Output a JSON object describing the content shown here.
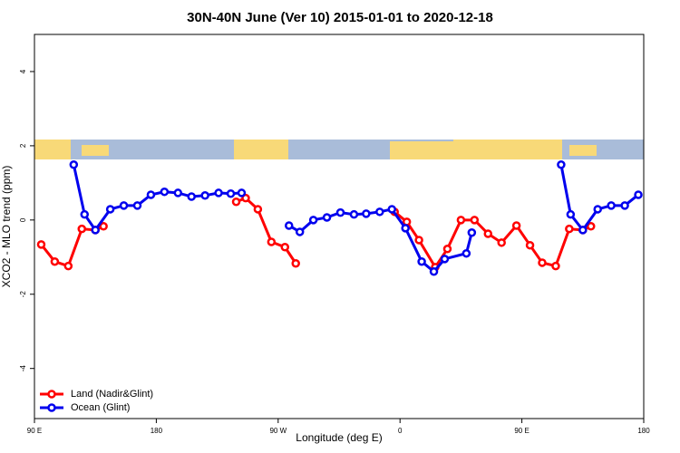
{
  "chart_data": {
    "type": "line",
    "title": "30N-40N June (Ver 10)   2015-01-01 to 2020-12-18",
    "x_label": "Longitude (deg E)",
    "y_label": "XCO2 - MLO trend (ppm)",
    "xlim": [
      90,
      540
    ],
    "xticks": [
      {
        "value": 90,
        "label": "90 E"
      },
      180,
      {
        "value": 270,
        "label": "90 W"
      },
      {
        "value": 360,
        "label": "0"
      },
      {
        "value": 450,
        "label": "90 E"
      },
      {
        "value": 540,
        "label": "180"
      }
    ],
    "ylim": [
      -5.35,
      5.0
    ],
    "yticks": [
      -4,
      -2,
      0,
      2,
      4
    ],
    "legend": "bottomleft",
    "series": [
      {
        "name": "Land (Nadir&Glint)",
        "color": "#ff0000",
        "x": [
          95,
          105,
          115,
          125,
          135,
          141,
          null,
          239,
          246,
          255,
          265,
          275,
          283,
          null,
          356,
          365,
          374,
          386,
          395,
          405,
          415,
          425,
          435,
          446,
          456,
          465,
          475,
          485,
          495,
          501
        ],
        "values": [
          -0.66,
          -1.12,
          -1.24,
          -0.24,
          -0.27,
          -0.17,
          null,
          0.49,
          0.59,
          0.29,
          -0.59,
          -0.73,
          -1.17,
          null,
          0.22,
          -0.05,
          -0.54,
          -1.27,
          -0.78,
          0.0,
          0.0,
          -0.37,
          -0.61,
          -0.15,
          -0.68,
          -1.15,
          -1.24,
          -0.24,
          -0.27,
          -0.17
        ]
      },
      {
        "name": "Ocean (Glint)",
        "color": "#0000ee",
        "x": [
          119,
          127,
          135,
          146,
          156,
          166,
          176,
          186,
          196,
          206,
          216,
          226,
          235,
          243,
          null,
          278,
          286,
          296,
          306,
          316,
          326,
          335,
          345,
          354,
          364,
          376,
          385,
          393,
          409,
          413,
          null,
          479,
          486,
          495,
          506,
          516,
          526,
          536
        ],
        "values": [
          1.49,
          0.15,
          -0.27,
          0.29,
          0.39,
          0.39,
          0.68,
          0.76,
          0.73,
          0.63,
          0.66,
          0.73,
          0.71,
          0.73,
          null,
          -0.15,
          -0.32,
          0.0,
          0.07,
          0.2,
          0.15,
          0.17,
          0.22,
          0.29,
          -0.22,
          -1.12,
          -1.39,
          -1.05,
          -0.9,
          -0.34,
          null,
          1.49,
          0.15,
          -0.27,
          0.29,
          0.39,
          0.39,
          0.68
        ]
      }
    ]
  }
}
